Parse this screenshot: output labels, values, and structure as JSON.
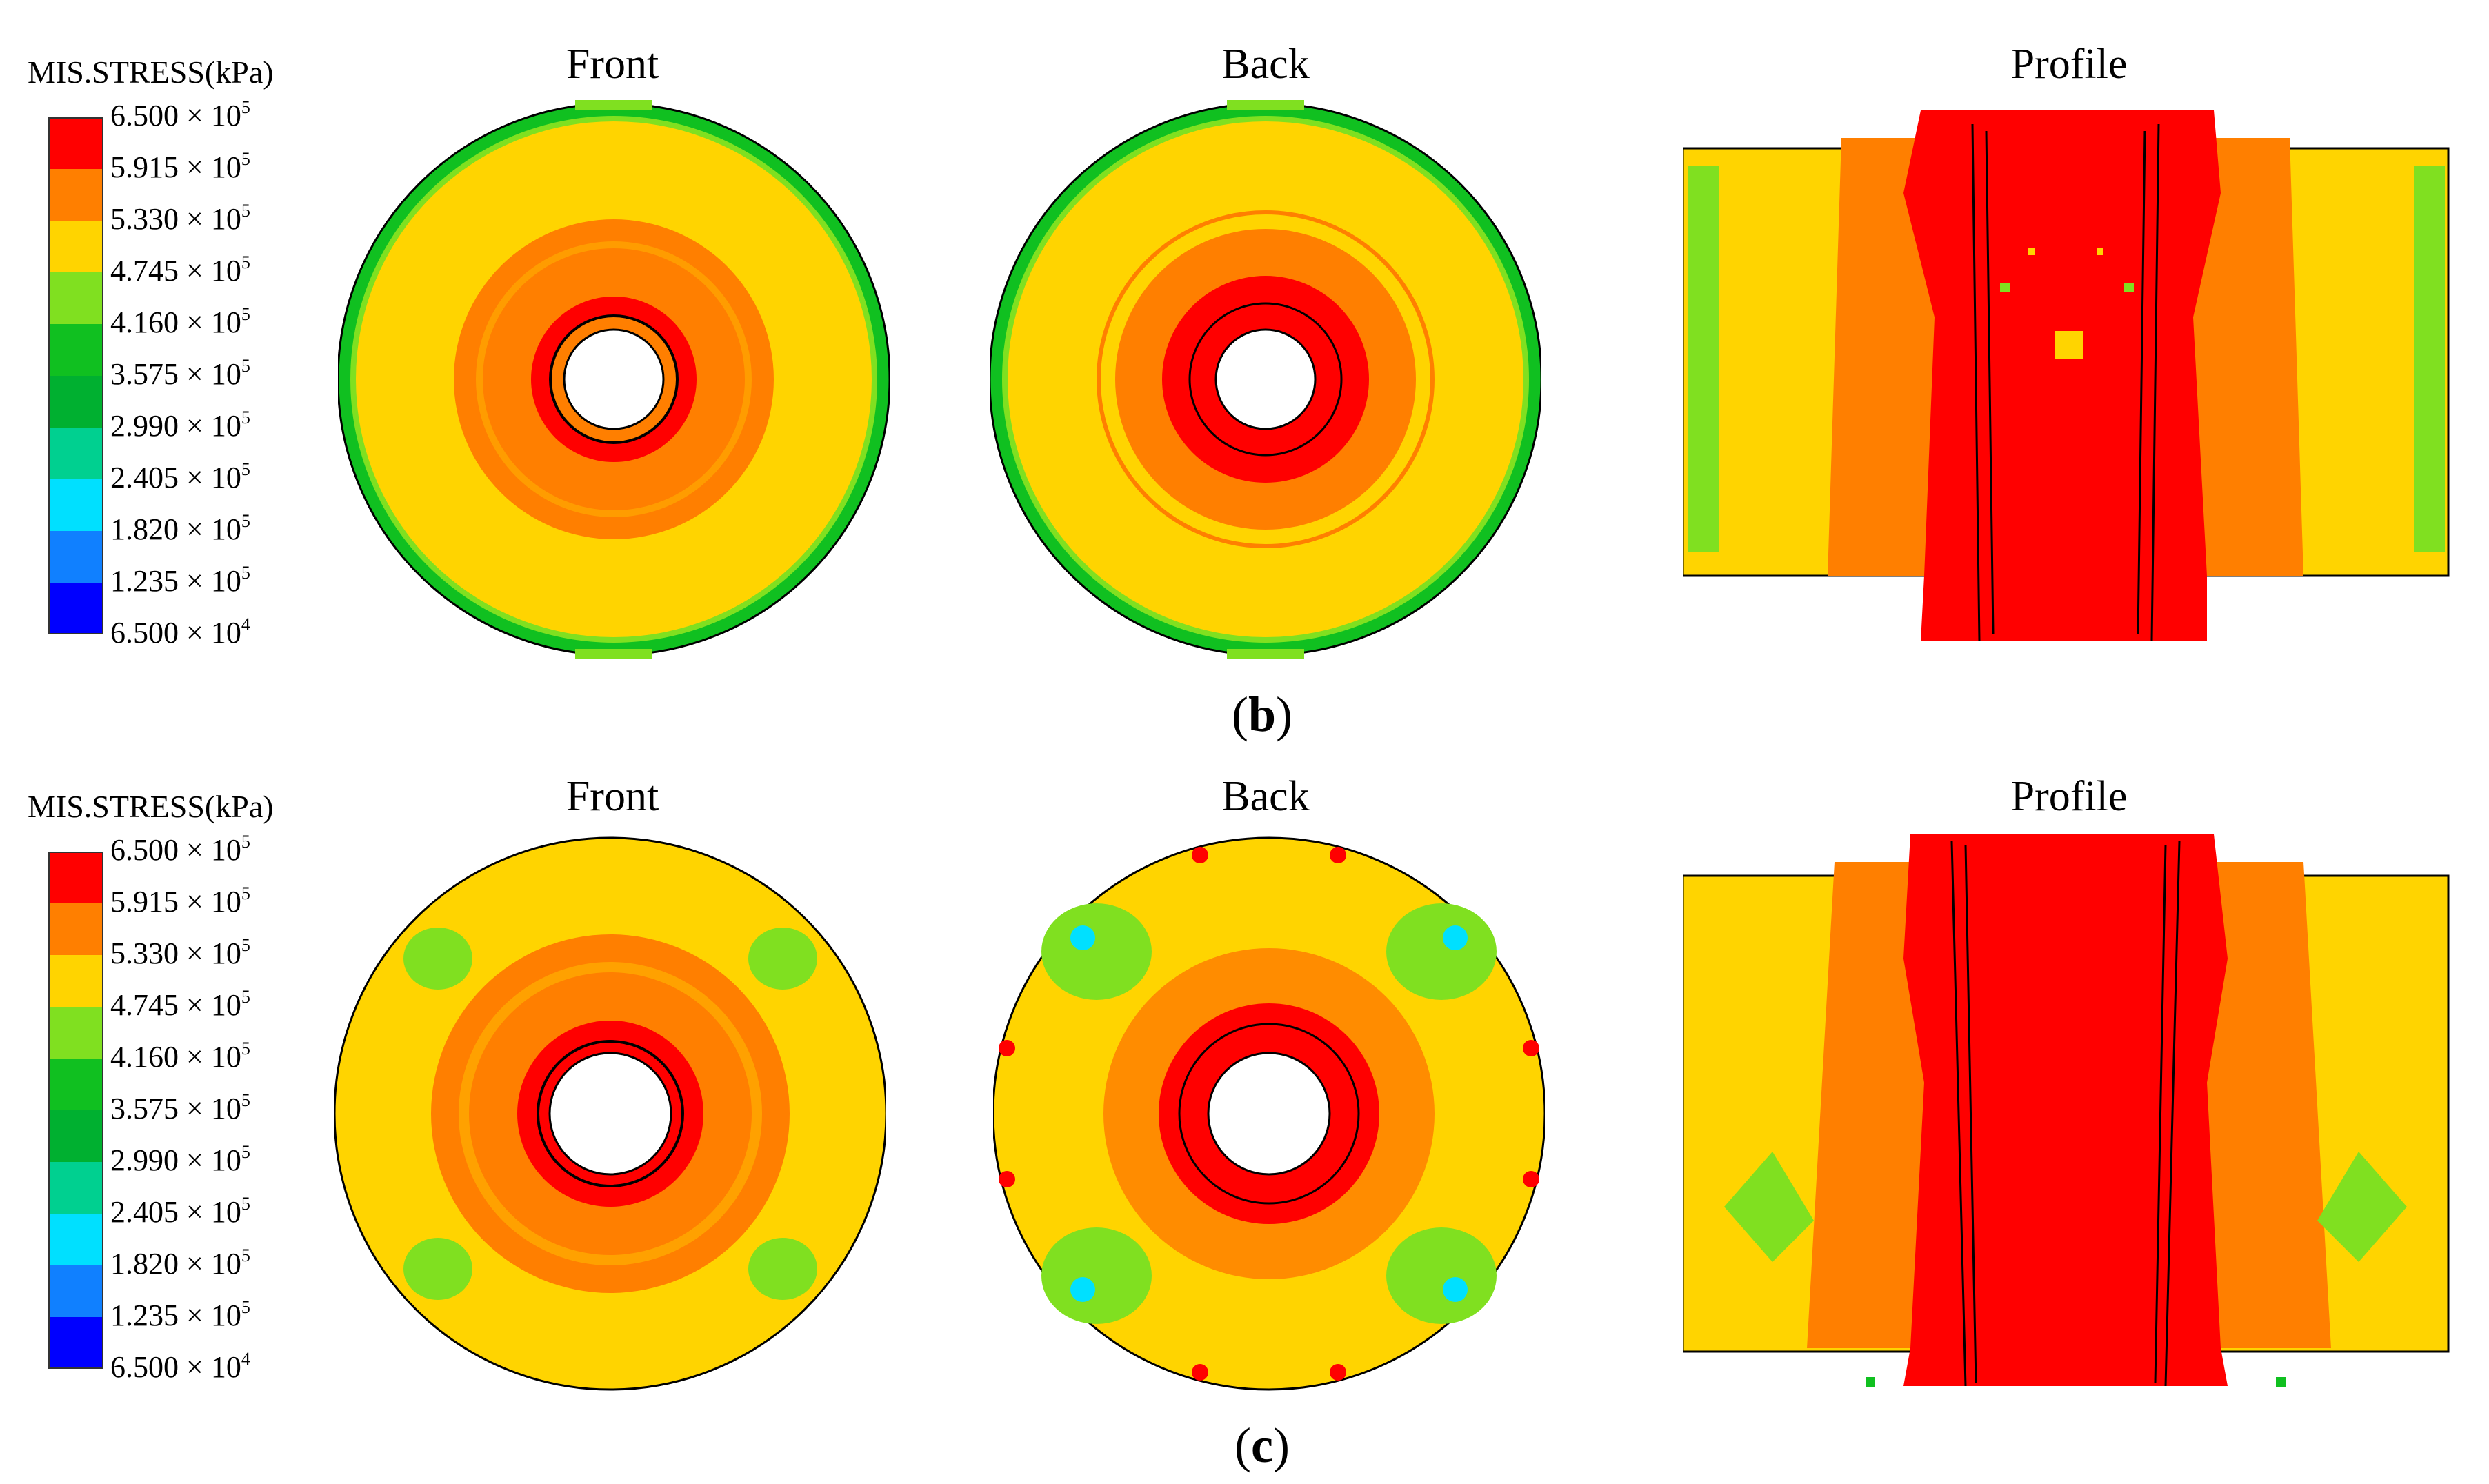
{
  "legend_title": "MIS.STRESS(kPa)",
  "colorbar": {
    "colors": [
      "#ff0000",
      "#ff7f00",
      "#ffd400",
      "#80e020",
      "#10c020",
      "#00b030",
      "#00d090",
      "#00e0ff",
      "#1080ff",
      "#0000ff"
    ],
    "levels": [
      {
        "mant": "6.500 × 10",
        "exp": "5"
      },
      {
        "mant": "5.915 × 10",
        "exp": "5"
      },
      {
        "mant": "5.330 × 10",
        "exp": "5"
      },
      {
        "mant": "4.745 × 10",
        "exp": "5"
      },
      {
        "mant": "4.160 × 10",
        "exp": "5"
      },
      {
        "mant": "3.575 × 10",
        "exp": "5"
      },
      {
        "mant": "2.990 × 10",
        "exp": "5"
      },
      {
        "mant": "2.405 × 10",
        "exp": "5"
      },
      {
        "mant": "1.820 × 10",
        "exp": "5"
      },
      {
        "mant": "1.235 × 10",
        "exp": "5"
      },
      {
        "mant": "6.500 × 10",
        "exp": "4"
      }
    ]
  },
  "views": [
    "Front",
    "Back",
    "Profile"
  ],
  "captions": {
    "b_open": "(",
    "b_letter": "b",
    "b_close": ")",
    "c_open": "(",
    "c_letter": "c",
    "c_close": ")"
  },
  "contour_colors": {
    "red": "#ff0000",
    "orange": "#ff7f00",
    "yellow": "#ffd400",
    "lightgreen": "#80e020",
    "green": "#10c020",
    "cyan": "#00e0ff",
    "blue": "#1080ff"
  }
}
